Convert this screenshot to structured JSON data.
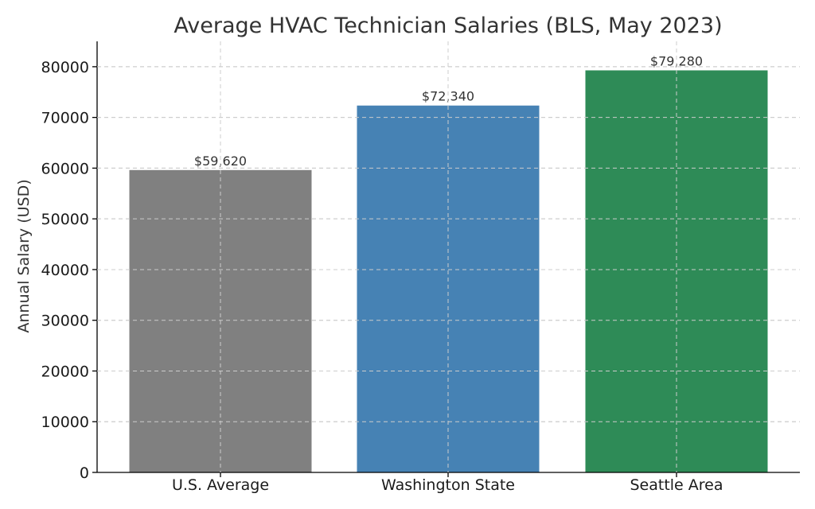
{
  "chart_data": {
    "type": "bar",
    "title": "Average HVAC Technician Salaries (BLS, May 2023)",
    "xlabel": "",
    "ylabel": "Annual Salary (USD)",
    "categories": [
      "U.S. Average",
      "Washington State",
      "Seattle Area"
    ],
    "values": [
      59620,
      72340,
      79280
    ],
    "data_labels": [
      "$59,620",
      "$72,340",
      "$79,280"
    ],
    "colors": [
      "#808080",
      "#4682b4",
      "#2e8b57"
    ],
    "ylim": [
      0,
      85000
    ],
    "yticks": [
      0,
      10000,
      20000,
      30000,
      40000,
      50000,
      60000,
      70000,
      80000
    ],
    "ytick_labels": [
      "0",
      "10000",
      "20000",
      "30000",
      "40000",
      "50000",
      "60000",
      "70000",
      "80000"
    ],
    "grid": true
  }
}
